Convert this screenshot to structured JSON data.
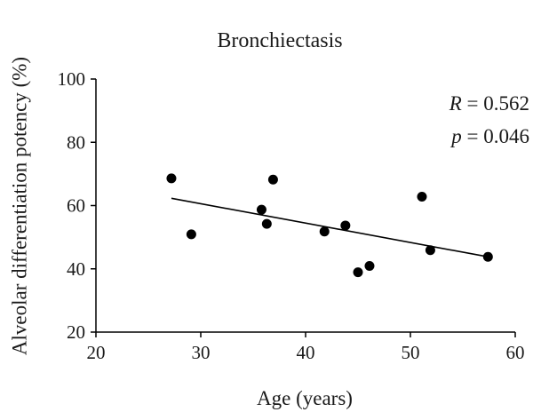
{
  "chart_data": {
    "type": "scatter",
    "title": "Bronchiectasis",
    "xlabel": "Age (years)",
    "ylabel": "Alveolar differentiation potency (%)",
    "xlim": [
      20,
      60
    ],
    "ylim": [
      20,
      100
    ],
    "xticks": [
      "20",
      "30",
      "40",
      "50",
      "60"
    ],
    "yticks": [
      "20",
      "40",
      "60",
      "80",
      "100"
    ],
    "grid": false,
    "points": [
      {
        "x": 27.2,
        "y": 68.6
      },
      {
        "x": 29.1,
        "y": 50.9
      },
      {
        "x": 35.8,
        "y": 58.7
      },
      {
        "x": 36.3,
        "y": 54.2
      },
      {
        "x": 36.9,
        "y": 68.2
      },
      {
        "x": 41.8,
        "y": 51.8
      },
      {
        "x": 43.8,
        "y": 53.7
      },
      {
        "x": 45.0,
        "y": 38.9
      },
      {
        "x": 46.1,
        "y": 40.9
      },
      {
        "x": 51.1,
        "y": 62.8
      },
      {
        "x": 51.9,
        "y": 45.9
      },
      {
        "x": 57.4,
        "y": 43.8
      }
    ],
    "trendline": {
      "x": [
        27.2,
        57.4
      ],
      "y": [
        62.3,
        43.8
      ]
    },
    "annotations": {
      "r_label": "R",
      "r_value": " = 0.562",
      "p_label": "p",
      "p_value": " = 0.046"
    }
  }
}
